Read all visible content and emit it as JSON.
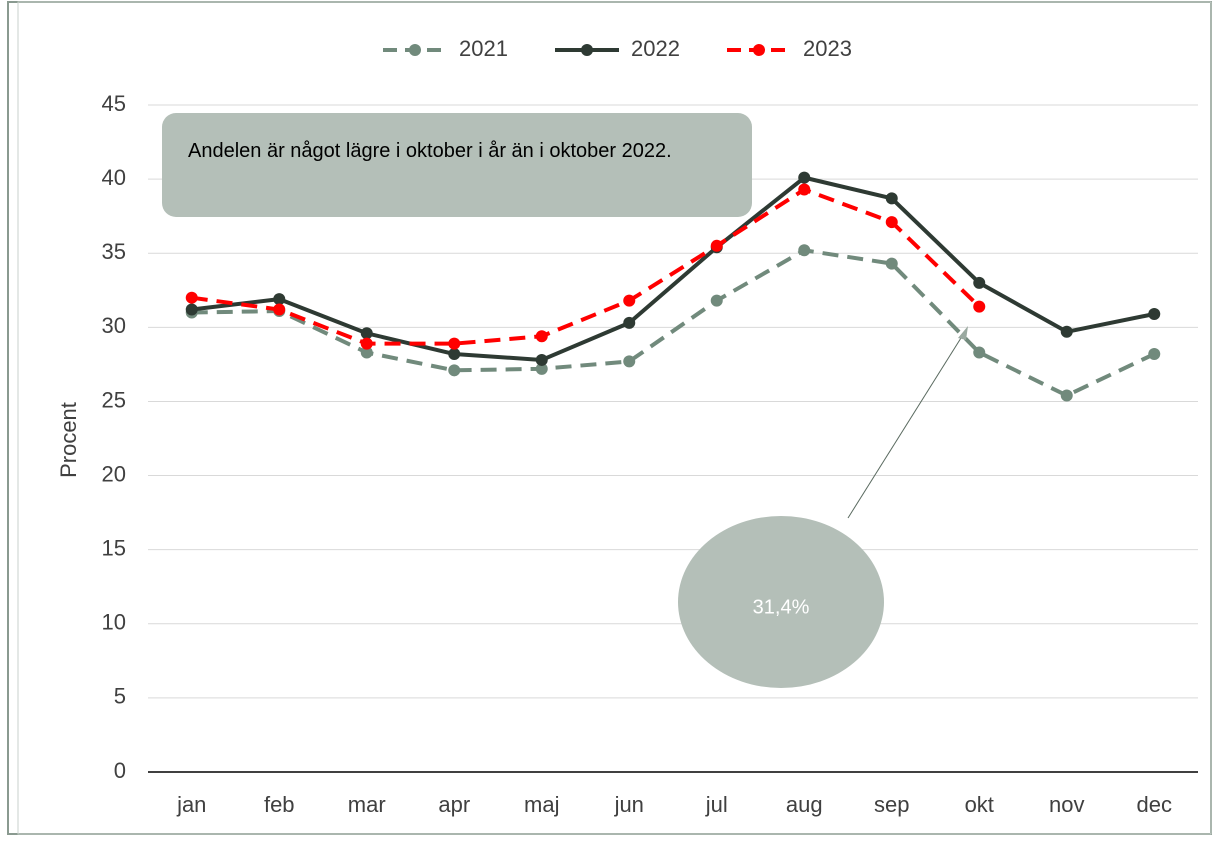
{
  "chart_data": {
    "type": "line",
    "y_label": "Procent",
    "categories": [
      "jan",
      "feb",
      "mar",
      "apr",
      "maj",
      "jun",
      "jul",
      "aug",
      "sep",
      "okt",
      "nov",
      "dec"
    ],
    "series": [
      {
        "name": "2021",
        "color": "#718a7c",
        "dash": true,
        "values": [
          31.0,
          31.1,
          28.3,
          27.1,
          27.2,
          27.7,
          31.8,
          35.2,
          34.3,
          28.3,
          25.4,
          28.2
        ]
      },
      {
        "name": "2022",
        "color": "#2e3a33",
        "dash": false,
        "values": [
          31.2,
          31.9,
          29.6,
          28.2,
          27.8,
          30.3,
          35.4,
          40.1,
          38.7,
          33.0,
          29.7,
          30.9
        ]
      },
      {
        "name": "2023",
        "color": "#ff0000",
        "dash": true,
        "values": [
          32.0,
          31.2,
          28.9,
          28.9,
          29.4,
          31.8,
          35.5,
          39.3,
          37.1,
          31.4,
          null,
          null
        ]
      }
    ],
    "ylim": [
      0,
      45
    ],
    "yticks": [
      0,
      5,
      10,
      15,
      20,
      25,
      30,
      35,
      40,
      45
    ],
    "grid": true,
    "legend": "top",
    "annotations": [
      "Andelen är något lägre i oktober i år än i oktober 2022.",
      "31,4%"
    ]
  }
}
